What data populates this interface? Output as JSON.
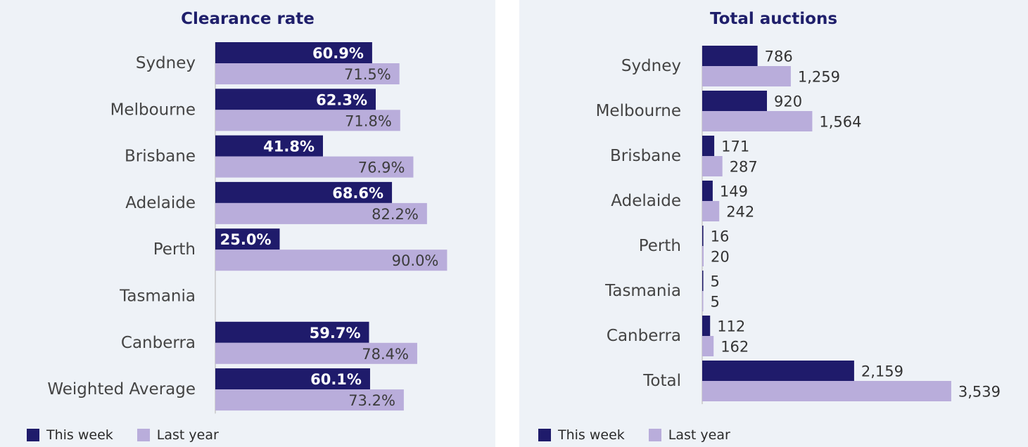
{
  "colors": {
    "this_week": "#1f1b6b",
    "last_year": "#b9addb",
    "axis": "#c8c8c8"
  },
  "chart_data": [
    {
      "type": "bar",
      "orientation": "horizontal",
      "title": "Clearance rate",
      "categories": [
        "Sydney",
        "Melbourne",
        "Brisbane",
        "Adelaide",
        "Perth",
        "Tasmania",
        "Canberra",
        "Weighted Average"
      ],
      "series": [
        {
          "name": "This week",
          "values": [
            60.9,
            62.3,
            41.8,
            68.6,
            25.0,
            null,
            59.7,
            60.1
          ],
          "labels": [
            "60.9%",
            "62.3%",
            "41.8%",
            "68.6%",
            "25.0%",
            "",
            "59.7%",
            "60.1%"
          ]
        },
        {
          "name": "Last year",
          "values": [
            71.5,
            71.8,
            76.9,
            82.2,
            90.0,
            null,
            78.4,
            73.2
          ],
          "labels": [
            "71.5%",
            "71.8%",
            "76.9%",
            "82.2%",
            "90.0%",
            "",
            "78.4%",
            "73.2%"
          ]
        }
      ],
      "xlim": [
        0,
        100
      ],
      "legend": "bottom-left",
      "label_position": "inside-end"
    },
    {
      "type": "bar",
      "orientation": "horizontal",
      "title": "Total auctions",
      "categories": [
        "Sydney",
        "Melbourne",
        "Brisbane",
        "Adelaide",
        "Perth",
        "Tasmania",
        "Canberra",
        "Total"
      ],
      "series": [
        {
          "name": "This week",
          "values": [
            786,
            920,
            171,
            149,
            16,
            5,
            112,
            2159
          ],
          "labels": [
            "786",
            "920",
            "171",
            "149",
            "16",
            "5",
            "112",
            "2,159"
          ]
        },
        {
          "name": "Last year",
          "values": [
            1259,
            1564,
            287,
            242,
            20,
            5,
            162,
            3539
          ],
          "labels": [
            "1,259",
            "1,564",
            "287",
            "242",
            "20",
            "5",
            "162",
            "3,539"
          ]
        }
      ],
      "xlim": [
        0,
        3600
      ],
      "legend": "bottom-left",
      "label_position": "outside-end"
    }
  ]
}
